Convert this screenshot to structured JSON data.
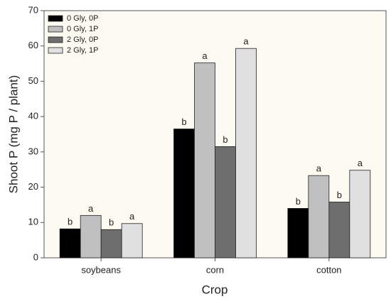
{
  "chart_data": {
    "type": "bar",
    "x_label": "Crop",
    "y_label": "Shoot P (mg P / plant)",
    "categories": [
      "soybeans",
      "corn",
      "cotton"
    ],
    "series": [
      {
        "name": "0 Gly, 0P",
        "color": "#000000",
        "values": [
          8.2,
          36.5,
          14
        ],
        "letters": [
          "b",
          "b",
          "b"
        ]
      },
      {
        "name": "0 Gly, 1P",
        "color": "#c0c0c0",
        "values": [
          12,
          55.2,
          23.3
        ],
        "letters": [
          "a",
          "a",
          "a"
        ]
      },
      {
        "name": "2 Gly, 0P",
        "color": "#6e6e6e",
        "values": [
          8,
          31.5,
          15.8
        ],
        "letters": [
          "b",
          "b",
          "b"
        ]
      },
      {
        "name": "2 Gly, 1P",
        "color": "#e0e0e0",
        "values": [
          9.7,
          59.3,
          24.8
        ],
        "letters": [
          "a",
          "a",
          "a"
        ]
      }
    ],
    "ylim": [
      0,
      70
    ],
    "yticks": [
      0,
      10,
      20,
      30,
      40,
      50,
      60,
      70
    ],
    "legend": "upper left",
    "background": "#fdfbf1"
  }
}
